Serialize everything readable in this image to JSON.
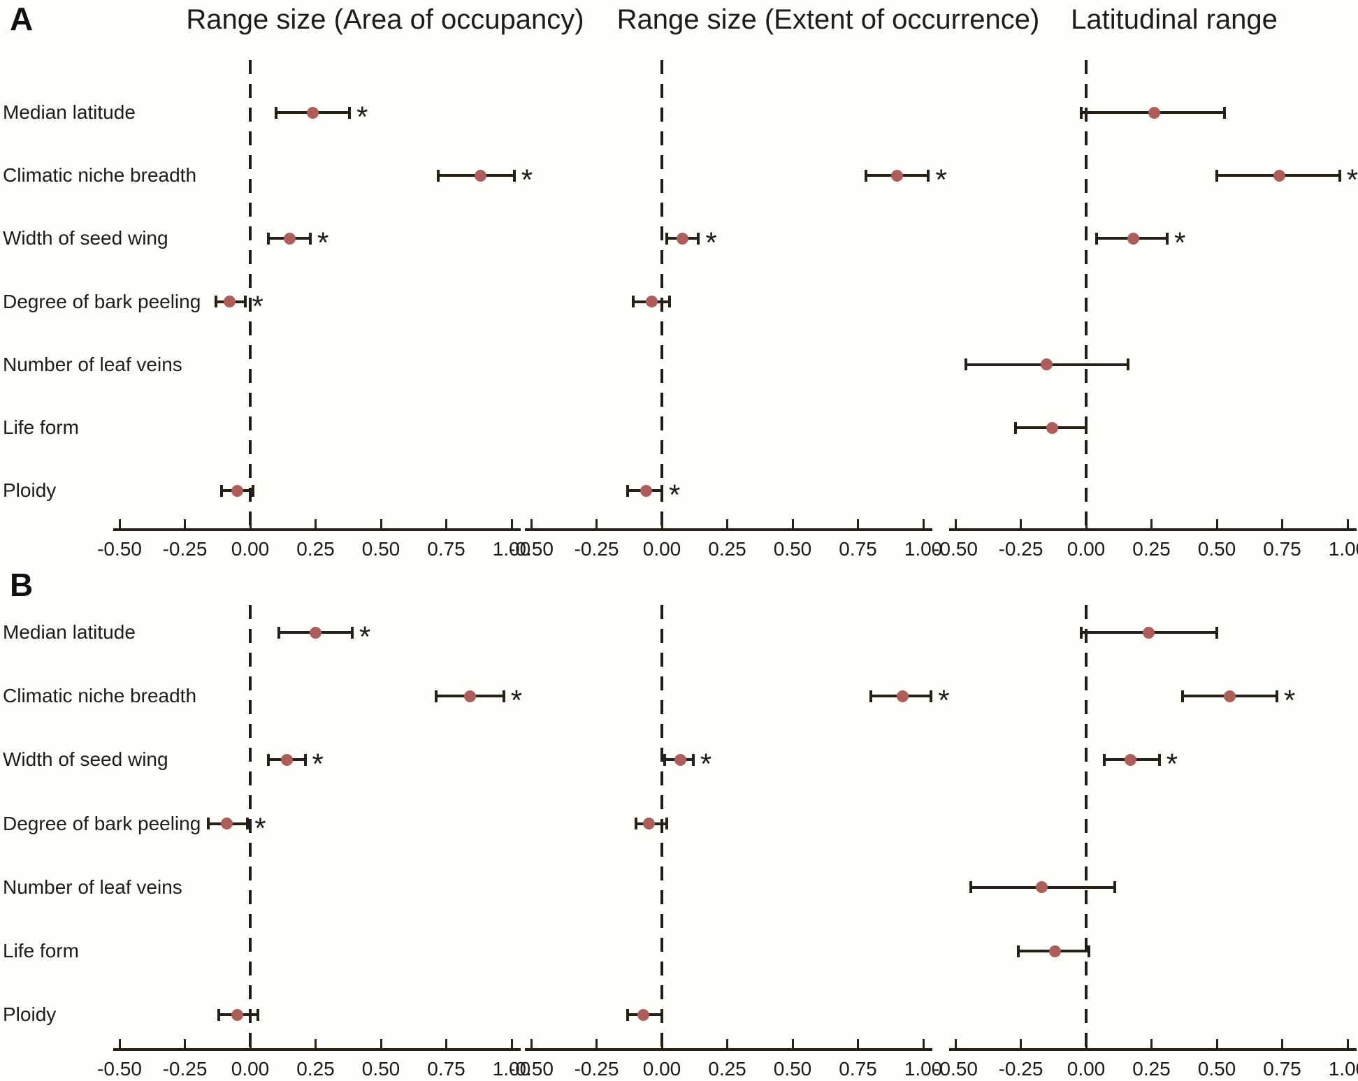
{
  "figure_title": "",
  "colors": {
    "background": "#fffefa",
    "marker": "#ad5e5a",
    "line": "#262019",
    "text": "#1f1b18"
  },
  "sig_marker": "*",
  "chart_data": {
    "type": "scatter",
    "subtype": "forest-plot-dot-whisker",
    "column_titles": [
      "Range size (Area of occupancy)",
      "Range size (Extent of occurrence)",
      "Latitudinal range"
    ],
    "rows": [
      "Median latitude",
      "Climatic niche breadth",
      "Width of seed wing",
      "Degree of bark peeling",
      "Number of leaf veins",
      "Life form",
      "Ploidy"
    ],
    "x_domain": [
      -0.5,
      1.0
    ],
    "x_ticks": [
      -0.5,
      -0.25,
      0,
      0.25,
      0.5,
      0.75,
      1.0
    ],
    "x_tick_labels": [
      "-0.50",
      "-0.25",
      "0.00",
      "0.25",
      "0.50",
      "0.75",
      "1.00"
    ],
    "zero_reference_line": true,
    "panels": [
      {
        "label": "A",
        "columns": [
          {
            "points": [
              {
                "row": "Median latitude",
                "estimate": 0.24,
                "ci": [
                  0.1,
                  0.38
                ],
                "significant": true
              },
              {
                "row": "Climatic niche breadth",
                "estimate": 0.88,
                "ci": [
                  0.72,
                  1.01
                ],
                "significant": true
              },
              {
                "row": "Width of seed wing",
                "estimate": 0.15,
                "ci": [
                  0.07,
                  0.23
                ],
                "significant": true
              },
              {
                "row": "Degree of bark peeling",
                "estimate": -0.08,
                "ci": [
                  -0.13,
                  -0.02
                ],
                "significant": true
              },
              {
                "row": "Ploidy",
                "estimate": -0.05,
                "ci": [
                  -0.11,
                  0.01
                ],
                "significant": false
              }
            ]
          },
          {
            "points": [
              {
                "row": "Climatic niche breadth",
                "estimate": 0.9,
                "ci": [
                  0.78,
                  1.02
                ],
                "significant": true
              },
              {
                "row": "Width of seed wing",
                "estimate": 0.08,
                "ci": [
                  0.02,
                  0.14
                ],
                "significant": true
              },
              {
                "row": "Degree of bark peeling",
                "estimate": -0.04,
                "ci": [
                  -0.11,
                  0.03
                ],
                "significant": false
              },
              {
                "row": "Ploidy",
                "estimate": -0.06,
                "ci": [
                  -0.13,
                  0.0
                ],
                "significant": true
              }
            ]
          },
          {
            "points": [
              {
                "row": "Median latitude",
                "estimate": 0.26,
                "ci": [
                  -0.02,
                  0.53
                ],
                "significant": false
              },
              {
                "row": "Climatic niche breadth",
                "estimate": 0.74,
                "ci": [
                  0.5,
                  0.97
                ],
                "significant": true
              },
              {
                "row": "Width of seed wing",
                "estimate": 0.18,
                "ci": [
                  0.04,
                  0.31
                ],
                "significant": true
              },
              {
                "row": "Number of leaf veins",
                "estimate": -0.15,
                "ci": [
                  -0.46,
                  0.16
                ],
                "significant": false
              },
              {
                "row": "Life form",
                "estimate": -0.13,
                "ci": [
                  -0.27,
                  0.0
                ],
                "significant": false
              }
            ]
          }
        ]
      },
      {
        "label": "B",
        "columns": [
          {
            "points": [
              {
                "row": "Median latitude",
                "estimate": 0.25,
                "ci": [
                  0.11,
                  0.39
                ],
                "significant": true
              },
              {
                "row": "Climatic niche breadth",
                "estimate": 0.84,
                "ci": [
                  0.71,
                  0.97
                ],
                "significant": true
              },
              {
                "row": "Width of seed wing",
                "estimate": 0.14,
                "ci": [
                  0.07,
                  0.21
                ],
                "significant": true
              },
              {
                "row": "Degree of bark peeling",
                "estimate": -0.09,
                "ci": [
                  -0.16,
                  -0.01
                ],
                "significant": true
              },
              {
                "row": "Ploidy",
                "estimate": -0.05,
                "ci": [
                  -0.12,
                  0.03
                ],
                "significant": false
              }
            ]
          },
          {
            "points": [
              {
                "row": "Climatic niche breadth",
                "estimate": 0.92,
                "ci": [
                  0.8,
                  1.03
                ],
                "significant": true
              },
              {
                "row": "Width of seed wing",
                "estimate": 0.07,
                "ci": [
                  0.01,
                  0.12
                ],
                "significant": true
              },
              {
                "row": "Degree of bark peeling",
                "estimate": -0.05,
                "ci": [
                  -0.1,
                  0.02
                ],
                "significant": false
              },
              {
                "row": "Ploidy",
                "estimate": -0.07,
                "ci": [
                  -0.13,
                  0.0
                ],
                "significant": false
              }
            ]
          },
          {
            "points": [
              {
                "row": "Median latitude",
                "estimate": 0.24,
                "ci": [
                  -0.02,
                  0.5
                ],
                "significant": false
              },
              {
                "row": "Climatic niche breadth",
                "estimate": 0.55,
                "ci": [
                  0.37,
                  0.73
                ],
                "significant": true
              },
              {
                "row": "Width of seed wing",
                "estimate": 0.17,
                "ci": [
                  0.07,
                  0.28
                ],
                "significant": true
              },
              {
                "row": "Number of leaf veins",
                "estimate": -0.17,
                "ci": [
                  -0.44,
                  0.11
                ],
                "significant": false
              },
              {
                "row": "Life form",
                "estimate": -0.12,
                "ci": [
                  -0.26,
                  0.01
                ],
                "significant": false
              }
            ]
          }
        ]
      }
    ]
  }
}
